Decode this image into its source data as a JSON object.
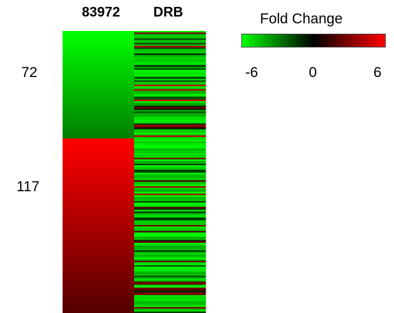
{
  "chart_data": {
    "type": "heatmap",
    "columns": [
      "83972",
      "DRB"
    ],
    "row_groups": [
      {
        "label": "72",
        "rows": 72
      },
      {
        "label": "117",
        "rows": 117
      }
    ],
    "colorbar": {
      "title": "Fold Change",
      "ticks": [
        "-6",
        "0",
        "6"
      ],
      "range": [
        -6,
        6
      ],
      "low_color": "#00ff00",
      "mid_color": "#000000",
      "high_color": "#ff0000"
    },
    "column_patterns": {
      "83972": {
        "group_72": {
          "trend": "decreasing fold change from top to bottom",
          "start": -6,
          "end": -3
        },
        "group_117": {
          "trend": "decreasing fold change from top to bottom",
          "start": 6,
          "end": 2
        }
      },
      "DRB": {
        "predominant": "negative (green)",
        "notes": "mostly green rows with scattered dark and a few red rows"
      }
    }
  }
}
